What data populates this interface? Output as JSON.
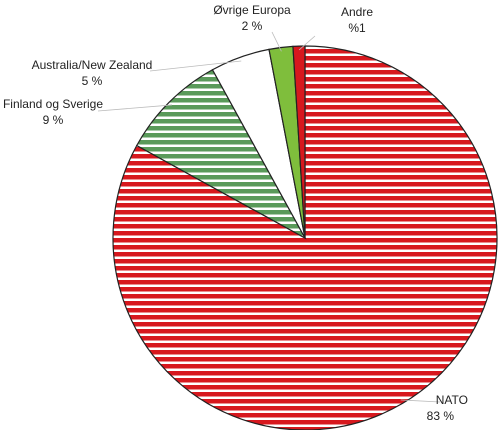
{
  "chart_data": {
    "type": "pie",
    "start_angle_deg": 0,
    "direction": "clockwise",
    "slices": [
      {
        "name": "NATO",
        "value": 83,
        "value_label": "83 %",
        "color": "#d7181e",
        "pattern": "horizontal-stripes"
      },
      {
        "name": "Finland og Sverige",
        "value": 9,
        "value_label": "9 %",
        "color": "#5a9a5a",
        "pattern": "horizontal-stripes"
      },
      {
        "name": "Australia/New Zealand",
        "value": 5,
        "value_label": "5 %",
        "color": "#ffffff",
        "pattern": "solid"
      },
      {
        "name": "Øvrige Europa",
        "value": 2,
        "value_label": "2 %",
        "color": "#7fbe3c",
        "pattern": "solid"
      },
      {
        "name": "Andre",
        "value": 1,
        "value_label": "%1",
        "color": "#d7181e",
        "pattern": "solid"
      }
    ]
  }
}
